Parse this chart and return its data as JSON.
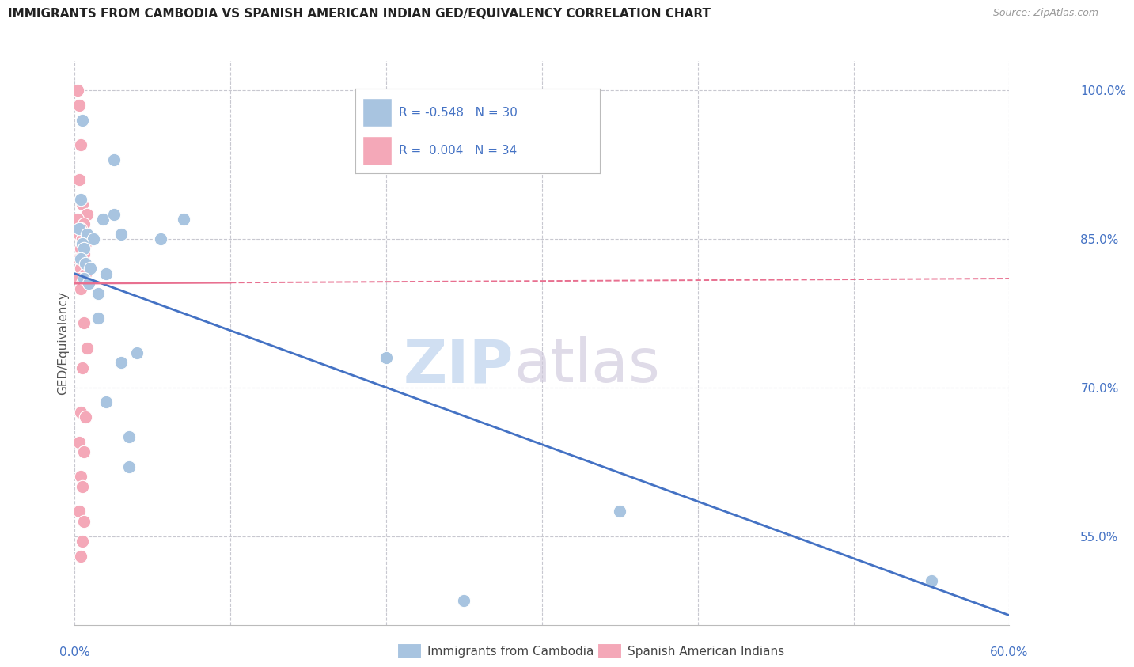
{
  "title": "IMMIGRANTS FROM CAMBODIA VS SPANISH AMERICAN INDIAN GED/EQUIVALENCY CORRELATION CHART",
  "source": "Source: ZipAtlas.com",
  "ylabel": "GED/Equivalency",
  "xmin": 0.0,
  "xmax": 60.0,
  "ymin": 46.0,
  "ymax": 103.0,
  "yticks": [
    55.0,
    70.0,
    85.0,
    100.0
  ],
  "ytick_labels": [
    "55.0%",
    "70.0%",
    "85.0%",
    "100.0%"
  ],
  "legend_blue_r": "-0.548",
  "legend_blue_n": "30",
  "legend_pink_r": "0.004",
  "legend_pink_n": "34",
  "legend_label_blue": "Immigrants from Cambodia",
  "legend_label_pink": "Spanish American Indians",
  "blue_dot_color": "#a8c4e0",
  "pink_dot_color": "#f4a8b8",
  "blue_line_color": "#4472c4",
  "pink_line_color": "#e87090",
  "right_axis_color": "#4472c4",
  "scatter_blue": [
    [
      0.5,
      97.0
    ],
    [
      2.5,
      93.0
    ],
    [
      0.4,
      89.0
    ],
    [
      1.8,
      87.0
    ],
    [
      0.3,
      86.0
    ],
    [
      0.8,
      85.5
    ],
    [
      1.2,
      85.0
    ],
    [
      0.5,
      84.5
    ],
    [
      0.6,
      84.0
    ],
    [
      2.5,
      87.5
    ],
    [
      7.0,
      87.0
    ],
    [
      3.0,
      85.5
    ],
    [
      5.5,
      85.0
    ],
    [
      0.4,
      83.0
    ],
    [
      0.7,
      82.5
    ],
    [
      1.0,
      82.0
    ],
    [
      2.0,
      81.5
    ],
    [
      0.6,
      81.0
    ],
    [
      0.9,
      80.5
    ],
    [
      1.5,
      79.5
    ],
    [
      1.5,
      77.0
    ],
    [
      4.0,
      73.5
    ],
    [
      20.0,
      73.0
    ],
    [
      3.0,
      72.5
    ],
    [
      2.0,
      68.5
    ],
    [
      3.5,
      65.0
    ],
    [
      3.5,
      62.0
    ],
    [
      35.0,
      57.5
    ],
    [
      55.0,
      50.5
    ],
    [
      25.0,
      48.5
    ]
  ],
  "scatter_pink": [
    [
      0.2,
      100.0
    ],
    [
      0.3,
      98.5
    ],
    [
      0.4,
      94.5
    ],
    [
      0.3,
      91.0
    ],
    [
      0.5,
      88.5
    ],
    [
      0.8,
      87.5
    ],
    [
      0.2,
      87.0
    ],
    [
      0.6,
      86.5
    ],
    [
      0.4,
      86.0
    ],
    [
      0.3,
      85.5
    ],
    [
      0.5,
      85.0
    ],
    [
      0.7,
      84.5
    ],
    [
      0.4,
      84.0
    ],
    [
      0.6,
      83.5
    ],
    [
      0.3,
      83.0
    ],
    [
      0.5,
      82.5
    ],
    [
      0.4,
      82.0
    ],
    [
      0.7,
      81.5
    ],
    [
      0.3,
      81.0
    ],
    [
      0.5,
      80.5
    ],
    [
      0.4,
      80.0
    ],
    [
      0.6,
      76.5
    ],
    [
      0.8,
      74.0
    ],
    [
      0.5,
      72.0
    ],
    [
      0.4,
      67.5
    ],
    [
      0.7,
      67.0
    ],
    [
      0.3,
      64.5
    ],
    [
      0.6,
      63.5
    ],
    [
      0.4,
      61.0
    ],
    [
      0.5,
      60.0
    ],
    [
      0.3,
      57.5
    ],
    [
      0.6,
      56.5
    ],
    [
      0.5,
      54.5
    ],
    [
      0.4,
      53.0
    ]
  ],
  "blue_trend_x0": 0.0,
  "blue_trend_y0": 81.5,
  "blue_trend_x1": 60.0,
  "blue_trend_y1": 47.0,
  "pink_trend_x0": 0.0,
  "pink_trend_y0": 80.5,
  "pink_trend_x1": 60.0,
  "pink_trend_y1": 81.0,
  "background_color": "#ffffff",
  "grid_color": "#c8c8d0",
  "watermark_zip_color": "#c8daf0",
  "watermark_atlas_color": "#cfc8dc"
}
